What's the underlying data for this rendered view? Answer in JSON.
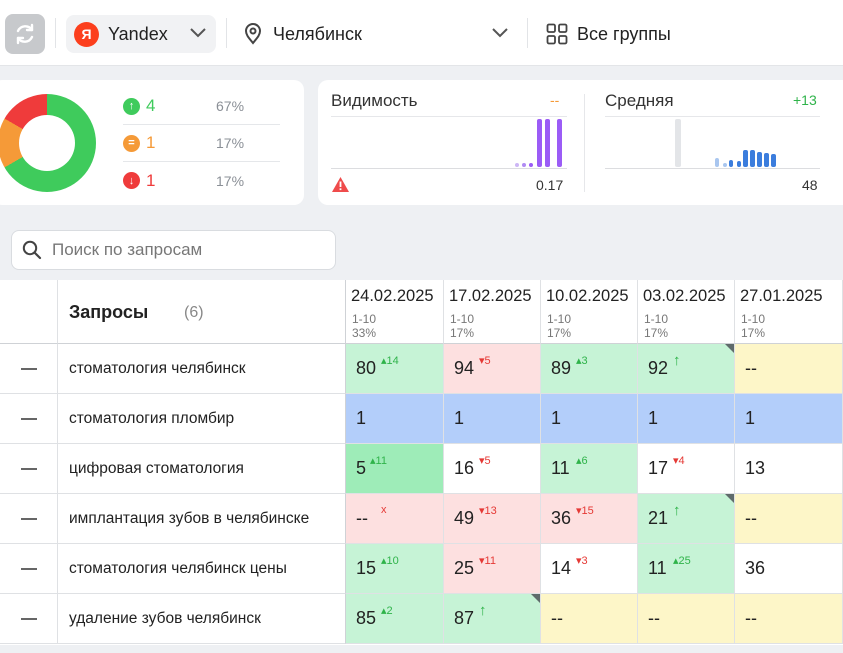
{
  "topbar": {
    "refresh_icon": "refresh-icon",
    "engine": {
      "logo": "Я",
      "label": "Yandex"
    },
    "city": {
      "label": "Челябинск"
    },
    "groups": {
      "label": "Все группы"
    }
  },
  "summary": {
    "donut": {
      "segments": [
        {
          "name": "up",
          "fraction": 0.667,
          "color": "#3fcb5c"
        },
        {
          "name": "same",
          "fraction": 0.167,
          "color": "#f59a38"
        },
        {
          "name": "down",
          "fraction": 0.167,
          "color": "#ef3b3b"
        }
      ]
    },
    "stats": [
      {
        "icon": "arrow-up-icon",
        "glyph": "↑",
        "count": "4",
        "pct": "67%",
        "color": "#3fcb5c"
      },
      {
        "icon": "equals-icon",
        "glyph": "=",
        "count": "1",
        "pct": "17%",
        "color": "#f59a38"
      },
      {
        "icon": "arrow-down-icon",
        "glyph": "↓",
        "count": "1",
        "pct": "17%",
        "color": "#ef3b3b"
      }
    ]
  },
  "visibility": {
    "title": "Видимость",
    "delta": "--",
    "value": "0.17",
    "delta_color": "#f59a38",
    "bar_color": "#9b5cf6"
  },
  "average": {
    "title": "Средняя",
    "delta": "+13",
    "value": "48",
    "delta_color": "#2fb34a",
    "bar_color": "#3b7ddd"
  },
  "search": {
    "placeholder": "Поиск по запросам"
  },
  "table": {
    "title": "Запросы",
    "count": "(6)",
    "columns": [
      {
        "date": "24.02.2025",
        "range": "1-10",
        "pct": "33%"
      },
      {
        "date": "17.02.2025",
        "range": "1-10",
        "pct": "17%"
      },
      {
        "date": "10.02.2025",
        "range": "1-10",
        "pct": "17%"
      },
      {
        "date": "03.02.2025",
        "range": "1-10",
        "pct": "17%"
      },
      {
        "date": "27.01.2025",
        "range": "1-10",
        "pct": "17%"
      }
    ],
    "rows": [
      {
        "query": "стоматология челябинск",
        "cells": [
          {
            "pos": "80",
            "delta": "14",
            "dir": "up",
            "bg": "#c6f3d6"
          },
          {
            "pos": "94",
            "delta": "5",
            "dir": "down",
            "bg": "#fde0e0"
          },
          {
            "pos": "89",
            "delta": "3",
            "dir": "up",
            "bg": "#c6f3d6"
          },
          {
            "pos": "92",
            "delta": "↑",
            "dir": "new",
            "bg": "#c6f3d6",
            "corner": true
          },
          {
            "pos": "--",
            "delta": "",
            "dir": "",
            "bg": "#fdf6c8"
          }
        ]
      },
      {
        "query": "стоматология пломбир",
        "cells": [
          {
            "pos": "1",
            "delta": "",
            "dir": "",
            "bg": "#b3cefa"
          },
          {
            "pos": "1",
            "delta": "",
            "dir": "",
            "bg": "#b3cefa"
          },
          {
            "pos": "1",
            "delta": "",
            "dir": "",
            "bg": "#b3cefa"
          },
          {
            "pos": "1",
            "delta": "",
            "dir": "",
            "bg": "#b3cefa"
          },
          {
            "pos": "1",
            "delta": "",
            "dir": "",
            "bg": "#b3cefa"
          }
        ]
      },
      {
        "query": "цифровая стоматология",
        "cells": [
          {
            "pos": "5",
            "delta": "11",
            "dir": "up",
            "bg": "#9eecb8"
          },
          {
            "pos": "16",
            "delta": "5",
            "dir": "down",
            "bg": "#ffffff"
          },
          {
            "pos": "11",
            "delta": "6",
            "dir": "up",
            "bg": "#c6f3d6"
          },
          {
            "pos": "17",
            "delta": "4",
            "dir": "down",
            "bg": "#ffffff"
          },
          {
            "pos": "13",
            "delta": "",
            "dir": "",
            "bg": "#ffffff"
          }
        ]
      },
      {
        "query": "имплантация зубов в челябинске",
        "cells": [
          {
            "pos": "--",
            "delta": "x",
            "dir": "gone",
            "bg": "#fde0e0"
          },
          {
            "pos": "49",
            "delta": "13",
            "dir": "down",
            "bg": "#fde0e0"
          },
          {
            "pos": "36",
            "delta": "15",
            "dir": "down",
            "bg": "#fde0e0"
          },
          {
            "pos": "21",
            "delta": "↑",
            "dir": "new",
            "bg": "#c6f3d6",
            "corner": true
          },
          {
            "pos": "--",
            "delta": "",
            "dir": "",
            "bg": "#fdf6c8"
          }
        ]
      },
      {
        "query": "стоматология челябинск цены",
        "cells": [
          {
            "pos": "15",
            "delta": "10",
            "dir": "up",
            "bg": "#c6f3d6"
          },
          {
            "pos": "25",
            "delta": "11",
            "dir": "down",
            "bg": "#fde0e0"
          },
          {
            "pos": "14",
            "delta": "3",
            "dir": "down",
            "bg": "#ffffff"
          },
          {
            "pos": "11",
            "delta": "25",
            "dir": "up",
            "bg": "#c6f3d6"
          },
          {
            "pos": "36",
            "delta": "",
            "dir": "",
            "bg": "#ffffff"
          }
        ]
      },
      {
        "query": "удаление зубов челябинск",
        "cells": [
          {
            "pos": "85",
            "delta": "2",
            "dir": "up",
            "bg": "#c6f3d6"
          },
          {
            "pos": "87",
            "delta": "↑",
            "dir": "new",
            "bg": "#c6f3d6",
            "corner": true
          },
          {
            "pos": "--",
            "delta": "",
            "dir": "",
            "bg": "#fdf6c8"
          },
          {
            "pos": "--",
            "delta": "",
            "dir": "",
            "bg": "#fdf6c8"
          },
          {
            "pos": "--",
            "delta": "",
            "dir": "",
            "bg": "#fdf6c8"
          }
        ]
      }
    ]
  }
}
